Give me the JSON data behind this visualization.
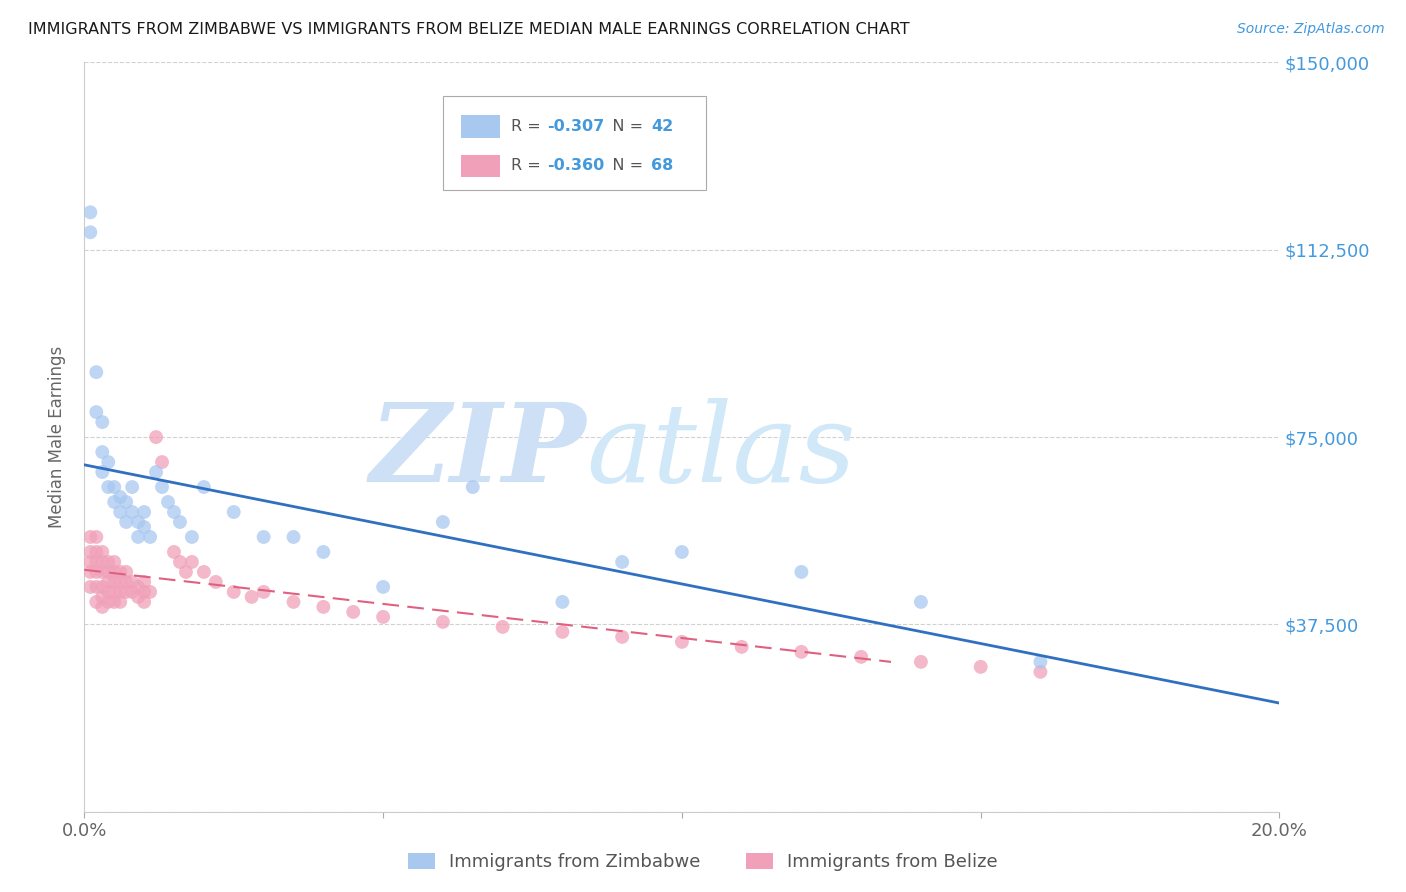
{
  "title": "IMMIGRANTS FROM ZIMBABWE VS IMMIGRANTS FROM BELIZE MEDIAN MALE EARNINGS CORRELATION CHART",
  "source": "Source: ZipAtlas.com",
  "ylabel": "Median Male Earnings",
  "xlim": [
    0.0,
    0.2
  ],
  "ylim": [
    0,
    150000
  ],
  "yticks": [
    0,
    37500,
    75000,
    112500,
    150000
  ],
  "ytick_labels": [
    "",
    "$37,500",
    "$75,000",
    "$112,500",
    "$150,000"
  ],
  "xticks": [
    0.0,
    0.05,
    0.1,
    0.15,
    0.2
  ],
  "xtick_labels": [
    "0.0%",
    "",
    "",
    "",
    "20.0%"
  ],
  "zimbabwe": {
    "R": -0.307,
    "N": 42,
    "color": "#a8c8f0",
    "line_color": "#3070c0",
    "label": "Immigrants from Zimbabwe",
    "x": [
      0.001,
      0.001,
      0.002,
      0.002,
      0.003,
      0.003,
      0.003,
      0.004,
      0.004,
      0.005,
      0.005,
      0.006,
      0.006,
      0.007,
      0.007,
      0.008,
      0.008,
      0.009,
      0.009,
      0.01,
      0.01,
      0.011,
      0.012,
      0.013,
      0.014,
      0.015,
      0.016,
      0.018,
      0.02,
      0.025,
      0.03,
      0.035,
      0.04,
      0.05,
      0.06,
      0.065,
      0.08,
      0.09,
      0.1,
      0.12,
      0.14,
      0.16
    ],
    "y": [
      120000,
      116000,
      88000,
      80000,
      78000,
      72000,
      68000,
      70000,
      65000,
      65000,
      62000,
      63000,
      60000,
      62000,
      58000,
      65000,
      60000,
      58000,
      55000,
      60000,
      57000,
      55000,
      68000,
      65000,
      62000,
      60000,
      58000,
      55000,
      65000,
      60000,
      55000,
      55000,
      52000,
      45000,
      58000,
      65000,
      42000,
      50000,
      52000,
      48000,
      42000,
      30000
    ]
  },
  "belize": {
    "R": -0.36,
    "N": 68,
    "color": "#f0a0b8",
    "line_color": "#e06080",
    "label": "Immigrants from Belize",
    "x": [
      0.001,
      0.001,
      0.001,
      0.001,
      0.001,
      0.002,
      0.002,
      0.002,
      0.002,
      0.002,
      0.002,
      0.003,
      0.003,
      0.003,
      0.003,
      0.003,
      0.003,
      0.004,
      0.004,
      0.004,
      0.004,
      0.004,
      0.005,
      0.005,
      0.005,
      0.005,
      0.005,
      0.006,
      0.006,
      0.006,
      0.006,
      0.007,
      0.007,
      0.007,
      0.008,
      0.008,
      0.009,
      0.009,
      0.01,
      0.01,
      0.01,
      0.011,
      0.012,
      0.013,
      0.015,
      0.016,
      0.017,
      0.018,
      0.02,
      0.022,
      0.025,
      0.028,
      0.03,
      0.035,
      0.04,
      0.045,
      0.05,
      0.06,
      0.07,
      0.08,
      0.09,
      0.1,
      0.11,
      0.12,
      0.13,
      0.14,
      0.15,
      0.16
    ],
    "y": [
      55000,
      52000,
      50000,
      48000,
      45000,
      55000,
      52000,
      50000,
      48000,
      45000,
      42000,
      52000,
      50000,
      48000,
      45000,
      43000,
      41000,
      50000,
      48000,
      46000,
      44000,
      42000,
      50000,
      48000,
      46000,
      44000,
      42000,
      48000,
      46000,
      44000,
      42000,
      48000,
      46000,
      44000,
      46000,
      44000,
      45000,
      43000,
      46000,
      44000,
      42000,
      44000,
      75000,
      70000,
      52000,
      50000,
      48000,
      50000,
      48000,
      46000,
      44000,
      43000,
      44000,
      42000,
      41000,
      40000,
      39000,
      38000,
      37000,
      36000,
      35000,
      34000,
      33000,
      32000,
      31000,
      30000,
      29000,
      28000
    ]
  },
  "watermark": "ZIPatlas",
  "watermark_color": "#cde0f5",
  "title_color": "#1a1a1a",
  "axis_color": "#4499dd",
  "grid_color": "#cccccc",
  "background_color": "#ffffff"
}
